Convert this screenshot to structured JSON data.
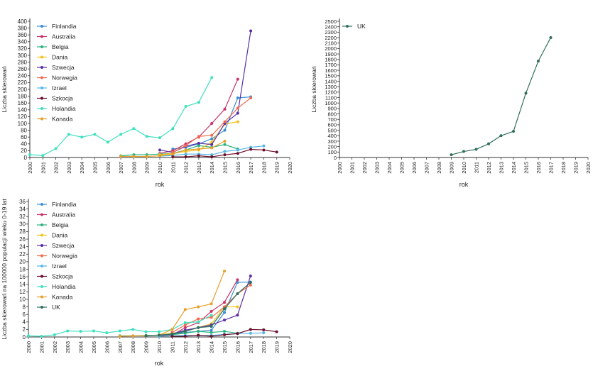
{
  "chart_data": [
    {
      "type": "line",
      "xlabel": "rok",
      "ylabel": "Liczba skierowań",
      "xlim": [
        2000,
        2020
      ],
      "ylim": [
        0,
        400
      ],
      "yticks": [
        0,
        20,
        40,
        60,
        80,
        100,
        120,
        140,
        160,
        180,
        200,
        220,
        240,
        260,
        280,
        300,
        320,
        340,
        360,
        380,
        400
      ],
      "legend_position": "top-left",
      "grid": false,
      "series": [
        {
          "name": "Finlandia",
          "color": "#3a8fd6",
          "points": [
            [
              2011,
              25
            ],
            [
              2012,
              30
            ],
            [
              2013,
              40
            ],
            [
              2014,
              55
            ],
            [
              2015,
              80
            ],
            [
              2016,
              175
            ],
            [
              2017,
              178
            ]
          ]
        },
        {
          "name": "Australia",
          "color": "#c8336a",
          "points": [
            [
              2010,
              12
            ],
            [
              2011,
              20
            ],
            [
              2012,
              40
            ],
            [
              2013,
              60
            ],
            [
              2014,
              100
            ],
            [
              2015,
              142
            ],
            [
              2016,
              230
            ]
          ]
        },
        {
          "name": "Belgia",
          "color": "#2cb37e",
          "points": [
            [
              2007,
              5
            ],
            [
              2008,
              8
            ],
            [
              2009,
              8
            ],
            [
              2010,
              10
            ],
            [
              2011,
              12
            ],
            [
              2012,
              22
            ],
            [
              2013,
              35
            ],
            [
              2014,
              30
            ],
            [
              2015,
              38
            ],
            [
              2016,
              25
            ]
          ]
        },
        {
          "name": "Dania",
          "color": "#f2c21a",
          "points": [
            [
              2010,
              8
            ],
            [
              2011,
              12
            ],
            [
              2012,
              18
            ],
            [
              2013,
              22
            ],
            [
              2014,
              45
            ],
            [
              2015,
              98
            ],
            [
              2016,
              105
            ]
          ]
        },
        {
          "name": "Szwecja",
          "color": "#5a2ea6",
          "points": [
            [
              2010,
              22
            ],
            [
              2011,
              15
            ],
            [
              2012,
              33
            ],
            [
              2013,
              42
            ],
            [
              2014,
              38
            ],
            [
              2015,
              100
            ],
            [
              2016,
              130
            ],
            [
              2017,
              372
            ]
          ]
        },
        {
          "name": "Norwegia",
          "color": "#f06a4e",
          "points": [
            [
              2011,
              15
            ],
            [
              2012,
              35
            ],
            [
              2013,
              62
            ],
            [
              2014,
              65
            ],
            [
              2015,
              105
            ],
            [
              2016,
              145
            ],
            [
              2017,
              175
            ]
          ]
        },
        {
          "name": "Izrael",
          "color": "#55b7e8",
          "points": [
            [
              2010,
              4
            ],
            [
              2011,
              6
            ],
            [
              2012,
              10
            ],
            [
              2013,
              10
            ],
            [
              2014,
              8
            ],
            [
              2015,
              18
            ],
            [
              2016,
              22
            ],
            [
              2017,
              30
            ],
            [
              2018,
              34
            ]
          ]
        },
        {
          "name": "Szkocja",
          "color": "#6b0f2a",
          "points": [
            [
              2011,
              2
            ],
            [
              2012,
              2
            ],
            [
              2013,
              5
            ],
            [
              2014,
              2
            ],
            [
              2015,
              8
            ],
            [
              2016,
              12
            ],
            [
              2017,
              24
            ],
            [
              2018,
              22
            ],
            [
              2019,
              16
            ]
          ]
        },
        {
          "name": "Holandia",
          "color": "#3fe0c0",
          "points": [
            [
              2000,
              8
            ],
            [
              2001,
              6
            ],
            [
              2002,
              26
            ],
            [
              2003,
              68
            ],
            [
              2004,
              60
            ],
            [
              2005,
              68
            ],
            [
              2006,
              45
            ],
            [
              2007,
              68
            ],
            [
              2008,
              85
            ],
            [
              2009,
              62
            ],
            [
              2010,
              58
            ],
            [
              2011,
              85
            ],
            [
              2012,
              150
            ],
            [
              2013,
              162
            ],
            [
              2014,
              235
            ]
          ]
        },
        {
          "name": "Kanada",
          "color": "#e6a02b",
          "points": [
            [
              2007,
              3
            ],
            [
              2008,
              3
            ],
            [
              2009,
              3
            ],
            [
              2010,
              5
            ],
            [
              2011,
              10
            ],
            [
              2012,
              22
            ],
            [
              2013,
              25
            ],
            [
              2014,
              28
            ],
            [
              2015,
              48
            ]
          ]
        }
      ]
    },
    {
      "type": "line",
      "xlabel": "rok",
      "ylabel": "Liczba skierowań",
      "xlim": [
        2000,
        2020
      ],
      "ylim": [
        0,
        2500
      ],
      "yticks": [
        0,
        100,
        200,
        300,
        400,
        500,
        600,
        700,
        800,
        900,
        1000,
        1100,
        1200,
        1300,
        1400,
        1500,
        1600,
        1700,
        1800,
        1900,
        2000,
        2100,
        2200,
        2300,
        2400,
        2500
      ],
      "legend_position": "top-left",
      "grid": false,
      "series": [
        {
          "name": "UK",
          "color": "#2f6f5e",
          "points": [
            [
              2009,
              50
            ],
            [
              2010,
              110
            ],
            [
              2011,
              150
            ],
            [
              2012,
              250
            ],
            [
              2013,
              400
            ],
            [
              2014,
              480
            ],
            [
              2015,
              1180
            ],
            [
              2016,
              1770
            ],
            [
              2017,
              2200
            ]
          ]
        }
      ]
    },
    {
      "type": "line",
      "xlabel": "rok",
      "ylabel": "Liczba skierowań na 100000 populacji wieku 0-19 lat",
      "xlim": [
        2000,
        2020
      ],
      "ylim": [
        0,
        36
      ],
      "yticks": [
        0,
        2,
        4,
        6,
        8,
        10,
        12,
        14,
        16,
        18,
        20,
        22,
        24,
        26,
        28,
        30,
        32,
        34,
        36
      ],
      "legend_position": "top-left",
      "grid": false,
      "series": [
        {
          "name": "Finlandia",
          "color": "#3a8fd6",
          "points": [
            [
              2011,
              0.8
            ],
            [
              2012,
              1.2
            ],
            [
              2013,
              1.5
            ],
            [
              2014,
              1.8
            ],
            [
              2015,
              6.5
            ],
            [
              2016,
              14.5
            ],
            [
              2017,
              14.6
            ]
          ]
        },
        {
          "name": "Australia",
          "color": "#c8336a",
          "points": [
            [
              2010,
              0.3
            ],
            [
              2011,
              0.5
            ],
            [
              2012,
              2.5
            ],
            [
              2013,
              3.8
            ],
            [
              2014,
              6.8
            ],
            [
              2015,
              9.2
            ],
            [
              2016,
              15.2
            ]
          ]
        },
        {
          "name": "Belgia",
          "color": "#2cb37e",
          "points": [
            [
              2007,
              0.3
            ],
            [
              2008,
              0.3
            ],
            [
              2009,
              0.4
            ],
            [
              2010,
              0.5
            ],
            [
              2011,
              0.6
            ],
            [
              2012,
              1.0
            ],
            [
              2013,
              1.5
            ],
            [
              2014,
              1.2
            ],
            [
              2015,
              1.5
            ],
            [
              2016,
              1.0
            ]
          ]
        },
        {
          "name": "Dania",
          "color": "#f2c21a",
          "points": [
            [
              2010,
              0.6
            ],
            [
              2011,
              1.0
            ],
            [
              2012,
              1.5
            ],
            [
              2013,
              2.5
            ],
            [
              2014,
              3.5
            ],
            [
              2015,
              8.0
            ],
            [
              2016,
              8.0
            ]
          ]
        },
        {
          "name": "Szwecja",
          "color": "#5a2ea6",
          "points": [
            [
              2010,
              0.4
            ],
            [
              2011,
              0.8
            ],
            [
              2012,
              1.8
            ],
            [
              2013,
              2.5
            ],
            [
              2014,
              3.2
            ],
            [
              2015,
              4.5
            ],
            [
              2016,
              5.8
            ],
            [
              2017,
              16.2
            ]
          ]
        },
        {
          "name": "Norwegia",
          "color": "#f06a4e",
          "points": [
            [
              2011,
              1.2
            ],
            [
              2012,
              3.2
            ],
            [
              2013,
              4.8
            ],
            [
              2014,
              5.2
            ],
            [
              2015,
              8.0
            ],
            [
              2016,
              11.5
            ],
            [
              2017,
              13.8
            ]
          ]
        },
        {
          "name": "Izrael",
          "color": "#55b7e8",
          "points": [
            [
              2010,
              0.2
            ],
            [
              2011,
              0.3
            ],
            [
              2012,
              0.4
            ],
            [
              2013,
              0.4
            ],
            [
              2014,
              0.4
            ],
            [
              2015,
              0.7
            ],
            [
              2016,
              0.9
            ],
            [
              2017,
              1.0
            ],
            [
              2018,
              1.1
            ]
          ]
        },
        {
          "name": "Szkocja",
          "color": "#6b0f2a",
          "points": [
            [
              2011,
              0.2
            ],
            [
              2012,
              0.2
            ],
            [
              2013,
              0.5
            ],
            [
              2014,
              0.2
            ],
            [
              2015,
              0.6
            ],
            [
              2016,
              0.9
            ],
            [
              2017,
              2.0
            ],
            [
              2018,
              1.9
            ],
            [
              2019,
              1.4
            ]
          ]
        },
        {
          "name": "Holandia",
          "color": "#3fe0c0",
          "points": [
            [
              2000,
              0.3
            ],
            [
              2001,
              0.2
            ],
            [
              2002,
              0.6
            ],
            [
              2003,
              1.6
            ],
            [
              2004,
              1.5
            ],
            [
              2005,
              1.6
            ],
            [
              2006,
              1.1
            ],
            [
              2007,
              1.6
            ],
            [
              2008,
              2.0
            ],
            [
              2009,
              1.4
            ],
            [
              2010,
              1.4
            ],
            [
              2011,
              2.0
            ],
            [
              2012,
              3.8
            ],
            [
              2013,
              4.0
            ],
            [
              2014,
              5.8
            ]
          ]
        },
        {
          "name": "Kanada",
          "color": "#e6a02b",
          "points": [
            [
              2007,
              0.2
            ],
            [
              2008,
              0.3
            ],
            [
              2009,
              0.3
            ],
            [
              2010,
              0.5
            ],
            [
              2011,
              2.0
            ],
            [
              2012,
              7.3
            ],
            [
              2013,
              8.0
            ],
            [
              2014,
              8.8
            ],
            [
              2015,
              17.5
            ]
          ]
        },
        {
          "name": "UK",
          "color": "#2f6f5e",
          "points": [
            [
              2009,
              0.3
            ],
            [
              2010,
              0.5
            ],
            [
              2011,
              0.8
            ],
            [
              2012,
              1.5
            ],
            [
              2013,
              2.5
            ],
            [
              2014,
              2.8
            ],
            [
              2015,
              7.5
            ],
            [
              2016,
              11.5
            ],
            [
              2017,
              14.5
            ]
          ]
        }
      ]
    }
  ]
}
